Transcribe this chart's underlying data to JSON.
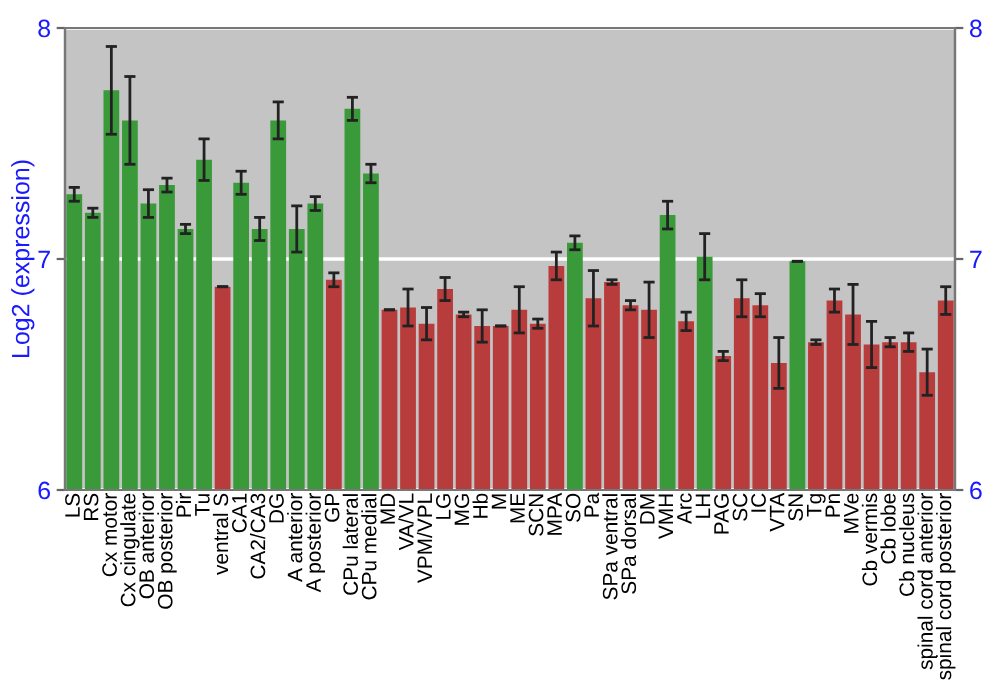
{
  "chart_data": {
    "type": "bar",
    "ylabel": "Log2 (expression)",
    "categories": [
      "LS",
      "RS",
      "Cx motor",
      "Cx cingulate",
      "OB anterior",
      "OB posterior",
      "Pir",
      "Tu",
      "ventral S",
      "CA1",
      "CA2/CA3",
      "DG",
      "A anterior",
      "A posterior",
      "GP",
      "CPu lateral",
      "CPu medial",
      "MD",
      "VA/VL",
      "VPM/VPL",
      "LG",
      "MG",
      "Hb",
      "M",
      "ME",
      "SCN",
      "MPA",
      "SO",
      "Pa",
      "SPa ventral",
      "SPa dorsal",
      "DM",
      "VMH",
      "Arc",
      "LH",
      "PAG",
      "SC",
      "IC",
      "VTA",
      "SN",
      "Tg",
      "Pn",
      "MVe",
      "Cb vermis",
      "Cb lobe",
      "Cb nucleus",
      "spinal cord anterior",
      "spinal cord posterior"
    ],
    "values": [
      7.28,
      7.2,
      7.73,
      7.6,
      7.24,
      7.32,
      7.13,
      7.43,
      6.88,
      7.33,
      7.13,
      7.6,
      7.13,
      7.24,
      6.91,
      7.65,
      7.37,
      6.78,
      6.79,
      6.72,
      6.87,
      6.76,
      6.71,
      6.71,
      6.78,
      6.72,
      6.97,
      7.07,
      6.83,
      6.9,
      6.8,
      6.78,
      7.19,
      6.73,
      7.01,
      6.58,
      6.83,
      6.8,
      6.55,
      6.99,
      6.64,
      6.82,
      6.76,
      6.63,
      6.64,
      6.64,
      6.51,
      6.82
    ],
    "errors": [
      0.03,
      0.02,
      0.19,
      0.19,
      0.06,
      0.03,
      0.02,
      0.09,
      null,
      0.05,
      0.05,
      0.08,
      0.1,
      0.03,
      0.03,
      0.05,
      0.04,
      null,
      0.08,
      0.07,
      0.05,
      0.01,
      0.07,
      null,
      0.1,
      0.02,
      0.06,
      0.03,
      0.12,
      0.01,
      0.02,
      0.12,
      0.06,
      0.04,
      0.1,
      0.02,
      0.08,
      0.05,
      0.11,
      null,
      0.01,
      0.05,
      0.13,
      0.1,
      0.02,
      0.04,
      0.1,
      0.06
    ],
    "colors": [
      "#3a9a3a",
      "#3a9a3a",
      "#3a9a3a",
      "#3a9a3a",
      "#3a9a3a",
      "#3a9a3a",
      "#3a9a3a",
      "#3a9a3a",
      "#b83c3c",
      "#3a9a3a",
      "#3a9a3a",
      "#3a9a3a",
      "#3a9a3a",
      "#3a9a3a",
      "#b83c3c",
      "#3a9a3a",
      "#3a9a3a",
      "#b83c3c",
      "#b83c3c",
      "#b83c3c",
      "#b83c3c",
      "#b83c3c",
      "#b83c3c",
      "#b83c3c",
      "#b83c3c",
      "#b83c3c",
      "#b83c3c",
      "#3a9a3a",
      "#b83c3c",
      "#b83c3c",
      "#b83c3c",
      "#b83c3c",
      "#3a9a3a",
      "#b83c3c",
      "#3a9a3a",
      "#b83c3c",
      "#b83c3c",
      "#b83c3c",
      "#b83c3c",
      "#3a9a3a",
      "#b83c3c",
      "#b83c3c",
      "#b83c3c",
      "#b83c3c",
      "#b83c3c",
      "#b83c3c",
      "#b83c3c",
      "#b83c3c"
    ],
    "ylim": [
      6,
      8
    ],
    "yticks": [
      6,
      7,
      8
    ],
    "y2lim": [
      6,
      8
    ],
    "y2ticks": [
      6,
      7,
      8
    ],
    "grid": "y"
  }
}
